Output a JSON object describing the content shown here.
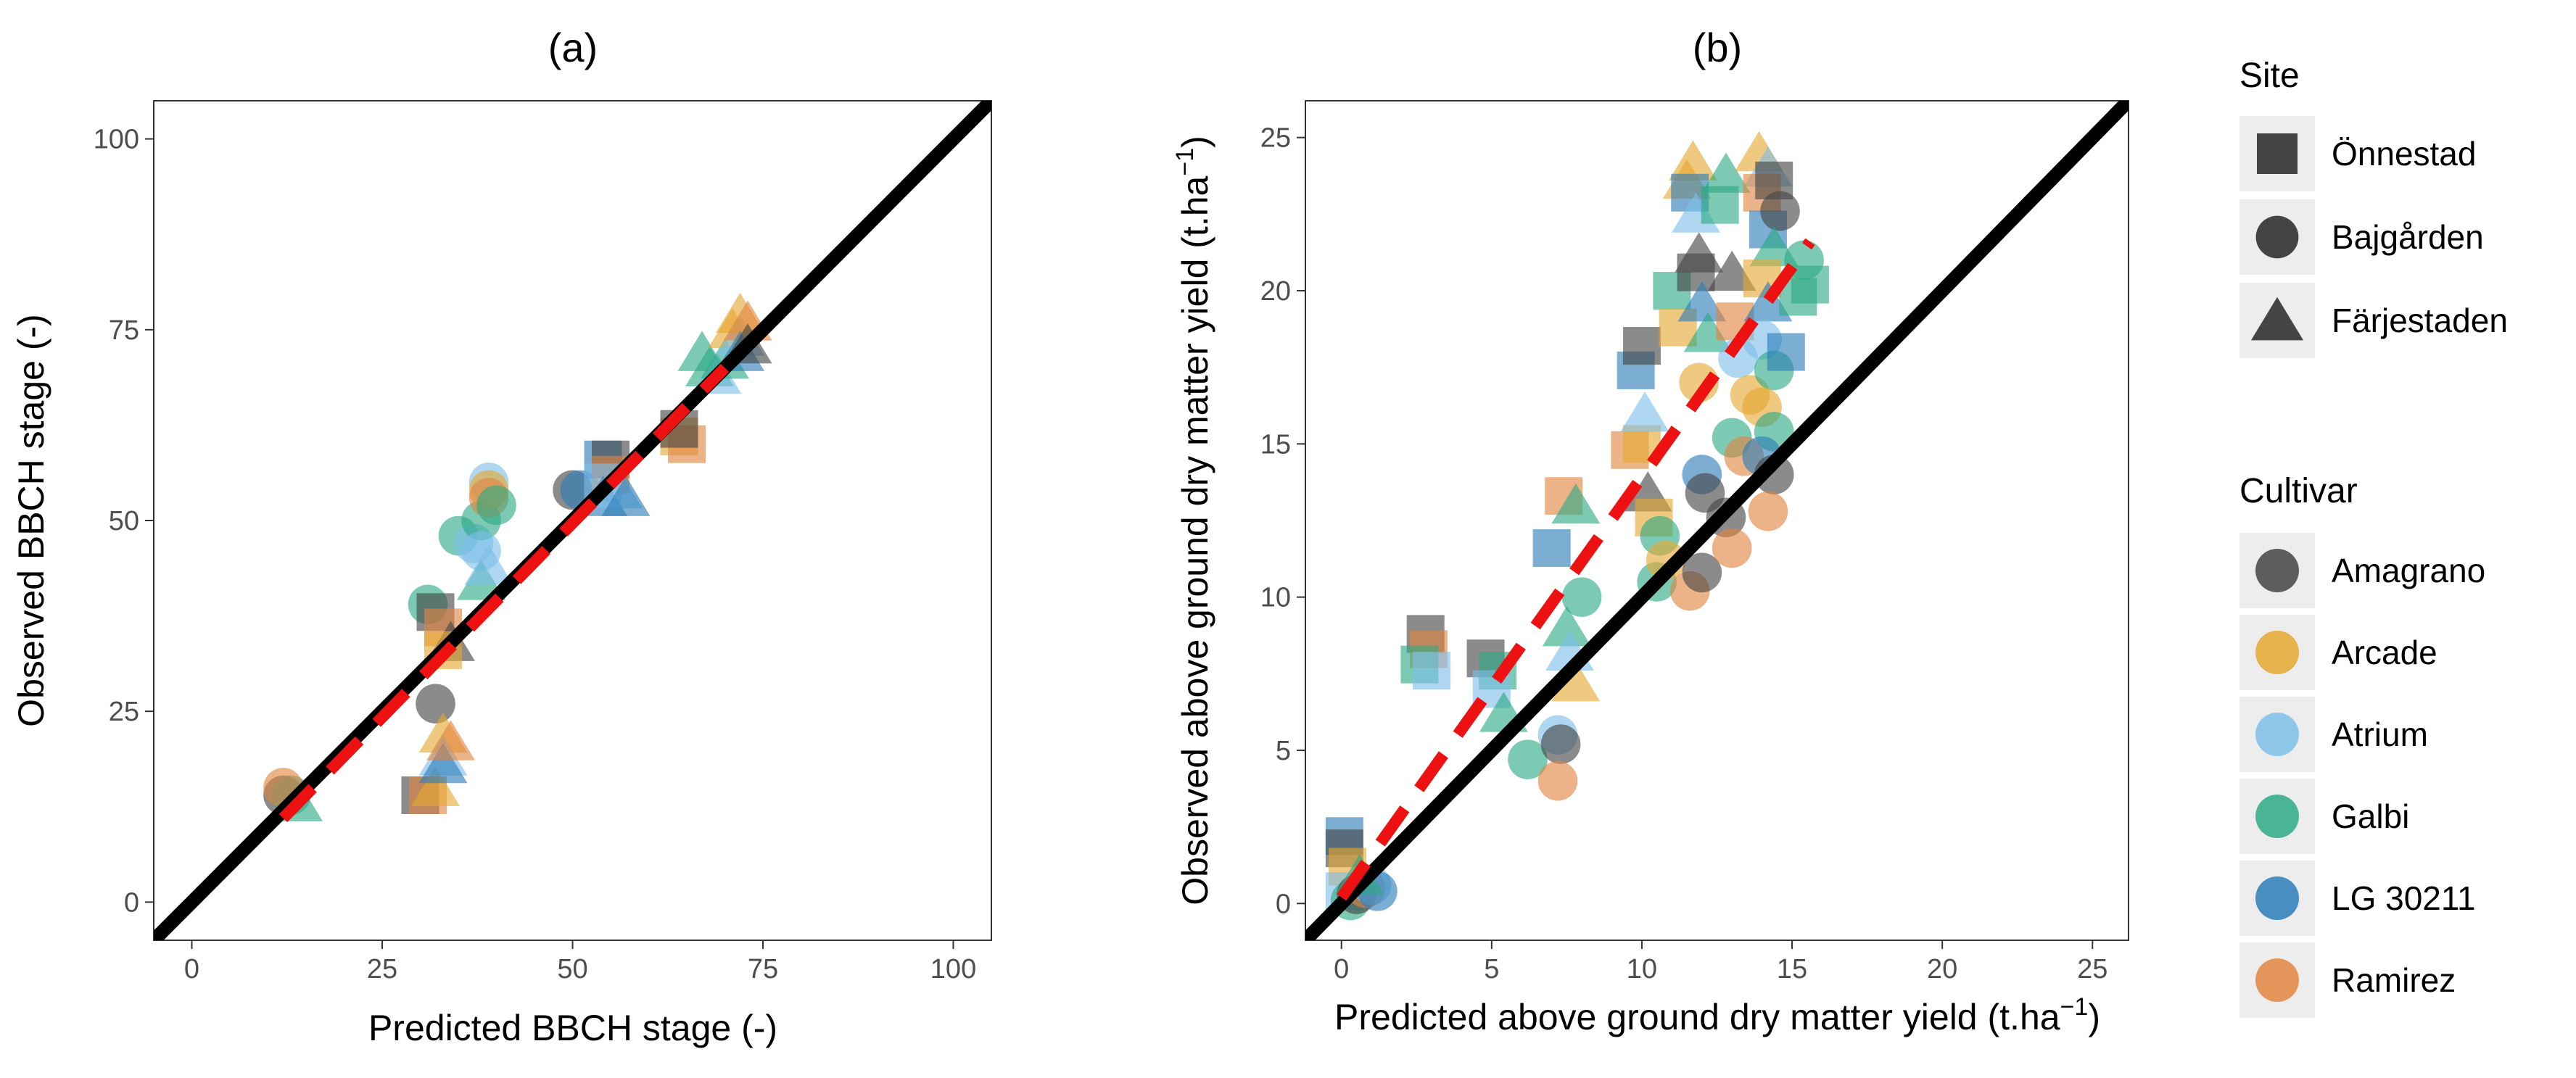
{
  "colors": {
    "Amagrano": "#444444",
    "Arcade": "#E5A830",
    "Atrium": "#7EBFEA",
    "Galbi": "#2BAA84",
    "LG 30211": "#2C7DB8",
    "Ramirez": "#E08540",
    "identity_line": "#000000",
    "fit_line": "#EE1111",
    "legend_key_bg": "#EDEDED",
    "legend_shape": "#444444"
  },
  "legend": {
    "site_title": "Site",
    "sites": [
      {
        "label": "Önnestad",
        "shape": "square"
      },
      {
        "label": "Bajgården",
        "shape": "circle"
      },
      {
        "label": "Färjestaden",
        "shape": "triangle"
      }
    ],
    "cultivar_title": "Cultivar",
    "cultivars": [
      "Amagrano",
      "Arcade",
      "Atrium",
      "Galbi",
      "LG 30211",
      "Ramirez"
    ]
  },
  "chart_data": [
    {
      "type": "scatter",
      "title": "(a)",
      "xlabel": "Predicted BBCH stage (-)",
      "ylabel": "Observed BBCH stage (-)",
      "xlim": [
        -5,
        105
      ],
      "ylim": [
        -5,
        105
      ],
      "xticks": [
        0,
        25,
        50,
        75,
        100
      ],
      "yticks": [
        0,
        25,
        50,
        75,
        100
      ],
      "identity_line": true,
      "fit_line": {
        "style": "dashed",
        "from": [
          12,
          11
        ],
        "to": [
          70,
          70
        ]
      },
      "points": [
        {
          "x": 12,
          "y": 14,
          "site": "Bajgården",
          "cultivar": "Amagrano"
        },
        {
          "x": 13,
          "y": 14,
          "site": "Bajgården",
          "cultivar": "Galbi"
        },
        {
          "x": 14,
          "y": 13,
          "site": "Färjestaden",
          "cultivar": "Galbi"
        },
        {
          "x": 12,
          "y": 15,
          "site": "Bajgården",
          "cultivar": "Ramirez"
        },
        {
          "x": 30,
          "y": 14,
          "site": "Önnestad",
          "cultivar": "Amagrano"
        },
        {
          "x": 31,
          "y": 14,
          "site": "Önnestad",
          "cultivar": "Ramirez"
        },
        {
          "x": 32,
          "y": 15,
          "site": "Färjestaden",
          "cultivar": "Arcade"
        },
        {
          "x": 32,
          "y": 26,
          "site": "Bajgården",
          "cultivar": "Amagrano"
        },
        {
          "x": 33,
          "y": 22,
          "site": "Färjestaden",
          "cultivar": "Arcade"
        },
        {
          "x": 33,
          "y": 19,
          "site": "Färjestaden",
          "cultivar": "Atrium"
        },
        {
          "x": 33,
          "y": 18,
          "site": "Färjestaden",
          "cultivar": "LG 30211"
        },
        {
          "x": 34,
          "y": 21,
          "site": "Färjestaden",
          "cultivar": "Ramirez"
        },
        {
          "x": 31,
          "y": 39,
          "site": "Bajgården",
          "cultivar": "Galbi"
        },
        {
          "x": 32,
          "y": 38,
          "site": "Önnestad",
          "cultivar": "Amagrano"
        },
        {
          "x": 33,
          "y": 36,
          "site": "Önnestad",
          "cultivar": "Ramirez"
        },
        {
          "x": 34,
          "y": 34,
          "site": "Färjestaden",
          "cultivar": "Amagrano"
        },
        {
          "x": 33,
          "y": 33,
          "site": "Önnestad",
          "cultivar": "Arcade"
        },
        {
          "x": 35,
          "y": 48,
          "site": "Bajgården",
          "cultivar": "Galbi"
        },
        {
          "x": 37,
          "y": 47,
          "site": "Bajgården",
          "cultivar": "Atrium"
        },
        {
          "x": 38,
          "y": 50,
          "site": "Bajgården",
          "cultivar": "Galbi"
        },
        {
          "x": 38,
          "y": 46,
          "site": "Bajgården",
          "cultivar": "Atrium"
        },
        {
          "x": 39,
          "y": 55,
          "site": "Bajgården",
          "cultivar": "Atrium"
        },
        {
          "x": 39,
          "y": 54,
          "site": "Bajgården",
          "cultivar": "Arcade"
        },
        {
          "x": 39,
          "y": 53,
          "site": "Bajgården",
          "cultivar": "Ramirez"
        },
        {
          "x": 40,
          "y": 52,
          "site": "Bajgården",
          "cultivar": "Galbi"
        },
        {
          "x": 38,
          "y": 42,
          "site": "Färjestaden",
          "cultivar": "Galbi"
        },
        {
          "x": 39,
          "y": 44,
          "site": "Färjestaden",
          "cultivar": "Atrium"
        },
        {
          "x": 50,
          "y": 54,
          "site": "Bajgården",
          "cultivar": "Amagrano"
        },
        {
          "x": 51,
          "y": 54,
          "site": "Bajgården",
          "cultivar": "LG 30211"
        },
        {
          "x": 54,
          "y": 58,
          "site": "Önnestad",
          "cultivar": "LG 30211"
        },
        {
          "x": 55,
          "y": 58,
          "site": "Önnestad",
          "cultivar": "Amagrano"
        },
        {
          "x": 55,
          "y": 56,
          "site": "Önnestad",
          "cultivar": "Ramirez"
        },
        {
          "x": 54,
          "y": 55,
          "site": "Önnestad",
          "cultivar": "Atrium"
        },
        {
          "x": 54,
          "y": 53,
          "site": "Färjestaden",
          "cultivar": "LG 30211"
        },
        {
          "x": 56,
          "y": 54,
          "site": "Färjestaden",
          "cultivar": "Atrium"
        },
        {
          "x": 57,
          "y": 53,
          "site": "Färjestaden",
          "cultivar": "LG 30211"
        },
        {
          "x": 64,
          "y": 61,
          "site": "Önnestad",
          "cultivar": "Arcade"
        },
        {
          "x": 65,
          "y": 60,
          "site": "Önnestad",
          "cultivar": "Ramirez"
        },
        {
          "x": 64,
          "y": 62,
          "site": "Önnestad",
          "cultivar": "Amagrano"
        },
        {
          "x": 67,
          "y": 72,
          "site": "Färjestaden",
          "cultivar": "Galbi"
        },
        {
          "x": 68,
          "y": 70,
          "site": "Färjestaden",
          "cultivar": "Galbi"
        },
        {
          "x": 69,
          "y": 69,
          "site": "Färjestaden",
          "cultivar": "Atrium"
        },
        {
          "x": 70,
          "y": 71,
          "site": "Färjestaden",
          "cultivar": "Galbi"
        },
        {
          "x": 71,
          "y": 75,
          "site": "Färjestaden",
          "cultivar": "Arcade"
        },
        {
          "x": 72,
          "y": 74,
          "site": "Färjestaden",
          "cultivar": "Atrium"
        },
        {
          "x": 72,
          "y": 77,
          "site": "Färjestaden",
          "cultivar": "Arcade"
        },
        {
          "x": 73,
          "y": 76,
          "site": "Färjestaden",
          "cultivar": "Ramirez"
        },
        {
          "x": 72,
          "y": 72,
          "site": "Färjestaden",
          "cultivar": "LG 30211"
        },
        {
          "x": 73,
          "y": 73,
          "site": "Färjestaden",
          "cultivar": "Amagrano"
        }
      ]
    },
    {
      "type": "scatter",
      "title": "(b)",
      "xlabel": "Predicted above ground dry matter yield (t.ha",
      "ylabel": "Observed above ground dry matter yield (t.ha",
      "unit_exponent": "−1",
      "unit_close": ")",
      "xlim": [
        -1.2,
        26.2
      ],
      "ylim": [
        -1.2,
        26.2
      ],
      "xticks": [
        0,
        5,
        10,
        15,
        20,
        25
      ],
      "yticks": [
        0,
        5,
        10,
        15,
        20,
        25
      ],
      "identity_line": true,
      "fit_line": {
        "style": "dashed",
        "from": [
          0,
          0.2
        ],
        "to": [
          15.6,
          21.6
        ]
      },
      "points": [
        {
          "x": 0.1,
          "y": 2.2,
          "site": "Önnestad",
          "cultivar": "LG 30211"
        },
        {
          "x": 0.1,
          "y": 1.8,
          "site": "Önnestad",
          "cultivar": "Amagrano"
        },
        {
          "x": 0.2,
          "y": 1.2,
          "site": "Önnestad",
          "cultivar": "Arcade"
        },
        {
          "x": 0.1,
          "y": 0.4,
          "site": "Önnestad",
          "cultivar": "Atrium"
        },
        {
          "x": 0.3,
          "y": 0.1,
          "site": "Bajgården",
          "cultivar": "Galbi"
        },
        {
          "x": 0.5,
          "y": 0.3,
          "site": "Bajgården",
          "cultivar": "Amagrano"
        },
        {
          "x": 0.8,
          "y": 0.5,
          "site": "Bajgården",
          "cultivar": "Ramirez"
        },
        {
          "x": 1.0,
          "y": 0.6,
          "site": "Bajgården",
          "cultivar": "Atrium"
        },
        {
          "x": 1.2,
          "y": 0.4,
          "site": "Bajgården",
          "cultivar": "LG 30211"
        },
        {
          "x": 0.6,
          "y": 0.9,
          "site": "Färjestaden",
          "cultivar": "Galbi"
        },
        {
          "x": 2.8,
          "y": 8.8,
          "site": "Önnestad",
          "cultivar": "Amagrano"
        },
        {
          "x": 2.9,
          "y": 8.3,
          "site": "Önnestad",
          "cultivar": "Ramirez"
        },
        {
          "x": 2.6,
          "y": 7.8,
          "site": "Önnestad",
          "cultivar": "Galbi"
        },
        {
          "x": 3.0,
          "y": 7.6,
          "site": "Önnestad",
          "cultivar": "Atrium"
        },
        {
          "x": 4.8,
          "y": 8.0,
          "site": "Önnestad",
          "cultivar": "Amagrano"
        },
        {
          "x": 5.2,
          "y": 7.6,
          "site": "Önnestad",
          "cultivar": "Galbi"
        },
        {
          "x": 5.0,
          "y": 7.0,
          "site": "Önnestad",
          "cultivar": "Atrium"
        },
        {
          "x": 5.4,
          "y": 6.2,
          "site": "Färjestaden",
          "cultivar": "Galbi"
        },
        {
          "x": 6.2,
          "y": 4.7,
          "site": "Bajgården",
          "cultivar": "Galbi"
        },
        {
          "x": 7.2,
          "y": 5.5,
          "site": "Bajgården",
          "cultivar": "Atrium"
        },
        {
          "x": 7.3,
          "y": 5.2,
          "site": "Bajgården",
          "cultivar": "Amagrano"
        },
        {
          "x": 7.2,
          "y": 4.0,
          "site": "Bajgården",
          "cultivar": "Ramirez"
        },
        {
          "x": 7.0,
          "y": 11.6,
          "site": "Önnestad",
          "cultivar": "LG 30211"
        },
        {
          "x": 7.4,
          "y": 13.3,
          "site": "Önnestad",
          "cultivar": "Ramirez"
        },
        {
          "x": 7.8,
          "y": 13.0,
          "site": "Färjestaden",
          "cultivar": "Galbi"
        },
        {
          "x": 7.5,
          "y": 9.0,
          "site": "Färjestaden",
          "cultivar": "Galbi"
        },
        {
          "x": 7.6,
          "y": 8.2,
          "site": "Färjestaden",
          "cultivar": "Atrium"
        },
        {
          "x": 7.8,
          "y": 7.2,
          "site": "Färjestaden",
          "cultivar": "Arcade"
        },
        {
          "x": 8.0,
          "y": 10.0,
          "site": "Bajgården",
          "cultivar": "Galbi"
        },
        {
          "x": 9.6,
          "y": 14.8,
          "site": "Önnestad",
          "cultivar": "Ramirez"
        },
        {
          "x": 10.0,
          "y": 15.0,
          "site": "Önnestad",
          "cultivar": "Arcade"
        },
        {
          "x": 9.8,
          "y": 17.4,
          "site": "Önnestad",
          "cultivar": "LG 30211"
        },
        {
          "x": 10.0,
          "y": 18.2,
          "site": "Önnestad",
          "cultivar": "Amagrano"
        },
        {
          "x": 10.1,
          "y": 16.0,
          "site": "Färjestaden",
          "cultivar": "Atrium"
        },
        {
          "x": 10.2,
          "y": 13.4,
          "site": "Färjestaden",
          "cultivar": "Amagrano"
        },
        {
          "x": 10.4,
          "y": 12.6,
          "site": "Önnestad",
          "cultivar": "Arcade"
        },
        {
          "x": 10.6,
          "y": 12.0,
          "site": "Bajgården",
          "cultivar": "Galbi"
        },
        {
          "x": 10.5,
          "y": 10.5,
          "site": "Bajgården",
          "cultivar": "Galbi"
        },
        {
          "x": 10.8,
          "y": 11.2,
          "site": "Bajgården",
          "cultivar": "Arcade"
        },
        {
          "x": 11.0,
          "y": 20.0,
          "site": "Önnestad",
          "cultivar": "Galbi"
        },
        {
          "x": 11.2,
          "y": 18.8,
          "site": "Önnestad",
          "cultivar": "Arcade"
        },
        {
          "x": 11.5,
          "y": 23.6,
          "site": "Färjestaden",
          "cultivar": "Arcade"
        },
        {
          "x": 11.7,
          "y": 24.2,
          "site": "Färjestaden",
          "cultivar": "Arcade"
        },
        {
          "x": 11.6,
          "y": 23.2,
          "site": "Önnestad",
          "cultivar": "LG 30211"
        },
        {
          "x": 11.8,
          "y": 22.5,
          "site": "Färjestaden",
          "cultivar": "Atrium"
        },
        {
          "x": 11.9,
          "y": 21.2,
          "site": "Färjestaden",
          "cultivar": "Amagrano"
        },
        {
          "x": 11.8,
          "y": 20.6,
          "site": "Önnestad",
          "cultivar": "Amagrano"
        },
        {
          "x": 12.0,
          "y": 19.6,
          "site": "Färjestaden",
          "cultivar": "LG 30211"
        },
        {
          "x": 12.2,
          "y": 18.6,
          "site": "Färjestaden",
          "cultivar": "Galbi"
        },
        {
          "x": 11.9,
          "y": 17.0,
          "site": "Bajgården",
          "cultivar": "Arcade"
        },
        {
          "x": 12.0,
          "y": 14.0,
          "site": "Bajgården",
          "cultivar": "LG 30211"
        },
        {
          "x": 12.1,
          "y": 13.4,
          "site": "Bajgården",
          "cultivar": "Amagrano"
        },
        {
          "x": 11.6,
          "y": 10.2,
          "site": "Bajgården",
          "cultivar": "Ramirez"
        },
        {
          "x": 12.0,
          "y": 10.8,
          "site": "Bajgården",
          "cultivar": "Amagrano"
        },
        {
          "x": 12.6,
          "y": 22.8,
          "site": "Önnestad",
          "cultivar": "Galbi"
        },
        {
          "x": 12.8,
          "y": 23.8,
          "site": "Färjestaden",
          "cultivar": "Galbi"
        },
        {
          "x": 13.0,
          "y": 20.6,
          "site": "Färjestaden",
          "cultivar": "Amagrano"
        },
        {
          "x": 13.1,
          "y": 19.0,
          "site": "Önnestad",
          "cultivar": "Ramirez"
        },
        {
          "x": 13.2,
          "y": 17.8,
          "site": "Bajgården",
          "cultivar": "Atrium"
        },
        {
          "x": 13.0,
          "y": 15.2,
          "site": "Bajgården",
          "cultivar": "Galbi"
        },
        {
          "x": 12.8,
          "y": 12.6,
          "site": "Bajgården",
          "cultivar": "Amagrano"
        },
        {
          "x": 13.0,
          "y": 11.6,
          "site": "Bajgården",
          "cultivar": "Ramirez"
        },
        {
          "x": 13.6,
          "y": 16.6,
          "site": "Bajgården",
          "cultivar": "Arcade"
        },
        {
          "x": 13.4,
          "y": 14.6,
          "site": "Bajgården",
          "cultivar": "Ramirez"
        },
        {
          "x": 13.9,
          "y": 24.5,
          "site": "Färjestaden",
          "cultivar": "Arcade"
        },
        {
          "x": 14.2,
          "y": 24.0,
          "site": "Färjestaden",
          "cultivar": "Atrium"
        },
        {
          "x": 14.0,
          "y": 23.2,
          "site": "Önnestad",
          "cultivar": "Ramirez"
        },
        {
          "x": 14.4,
          "y": 23.6,
          "site": "Önnestad",
          "cultivar": "Amagrano"
        },
        {
          "x": 14.2,
          "y": 22.0,
          "site": "Önnestad",
          "cultivar": "LG 30211"
        },
        {
          "x": 14.6,
          "y": 22.6,
          "site": "Bajgården",
          "cultivar": "Amagrano"
        },
        {
          "x": 14.4,
          "y": 21.4,
          "site": "Färjestaden",
          "cultivar": "Galbi"
        },
        {
          "x": 14.0,
          "y": 20.4,
          "site": "Önnestad",
          "cultivar": "Arcade"
        },
        {
          "x": 14.2,
          "y": 19.6,
          "site": "Färjestaden",
          "cultivar": "LG 30211"
        },
        {
          "x": 14.0,
          "y": 18.4,
          "site": "Bajgården",
          "cultivar": "Atrium"
        },
        {
          "x": 14.4,
          "y": 17.4,
          "site": "Bajgården",
          "cultivar": "Galbi"
        },
        {
          "x": 14.0,
          "y": 16.2,
          "site": "Bajgården",
          "cultivar": "Arcade"
        },
        {
          "x": 14.4,
          "y": 15.4,
          "site": "Bajgården",
          "cultivar": "Galbi"
        },
        {
          "x": 14.0,
          "y": 14.6,
          "site": "Bajgården",
          "cultivar": "LG 30211"
        },
        {
          "x": 14.4,
          "y": 14.0,
          "site": "Bajgården",
          "cultivar": "Amagrano"
        },
        {
          "x": 14.2,
          "y": 12.8,
          "site": "Bajgården",
          "cultivar": "Ramirez"
        },
        {
          "x": 15.2,
          "y": 19.8,
          "site": "Önnestad",
          "cultivar": "Galbi"
        },
        {
          "x": 15.4,
          "y": 21.0,
          "site": "Bajgården",
          "cultivar": "Galbi"
        },
        {
          "x": 14.8,
          "y": 18.0,
          "site": "Önnestad",
          "cultivar": "LG 30211"
        },
        {
          "x": 15.6,
          "y": 20.2,
          "site": "Önnestad",
          "cultivar": "Galbi"
        }
      ]
    }
  ]
}
